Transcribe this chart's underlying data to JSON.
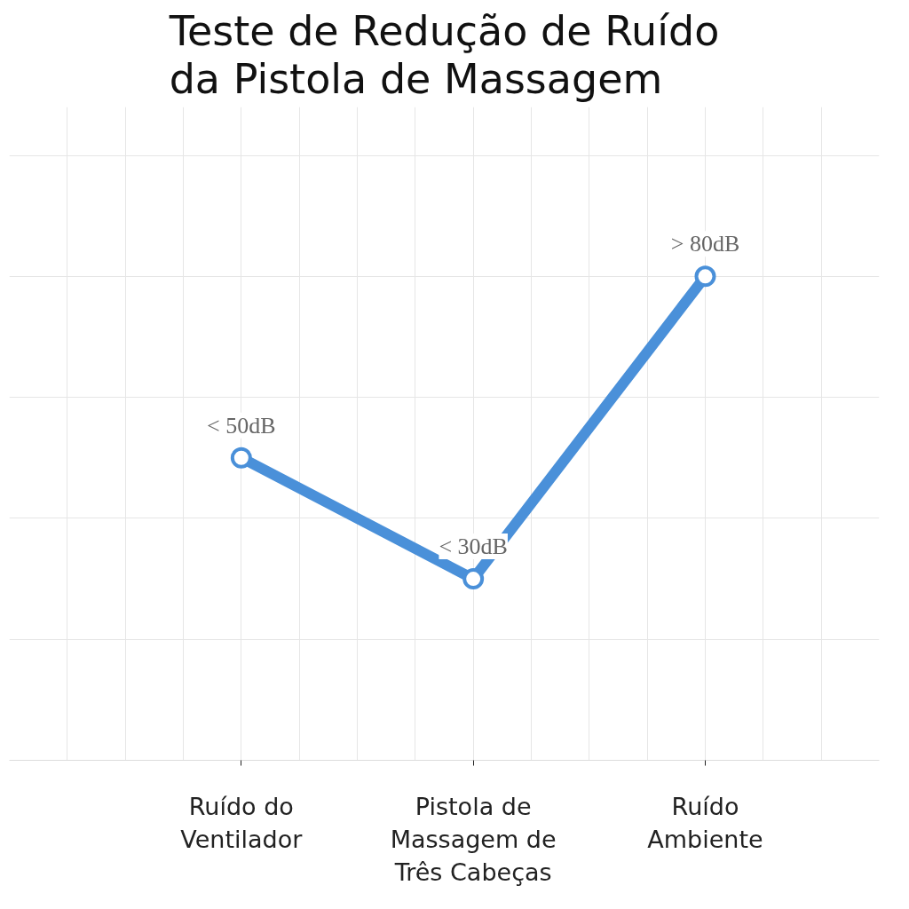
{
  "chart_data": {
    "type": "line",
    "title": "Teste de Redução de Ruído da Pistola de Massagem",
    "categories": [
      "Ruído do Ventilador",
      "Pistola de Massagem de Três Cabeças",
      "Ruído Ambiente"
    ],
    "values": [
      50,
      30,
      80
    ],
    "value_labels": [
      "< 50dB",
      "< 30dB",
      "> 80dB"
    ],
    "color": "#4a90d9",
    "marker": "circle",
    "line_style": "solid",
    "grid": true
  }
}
